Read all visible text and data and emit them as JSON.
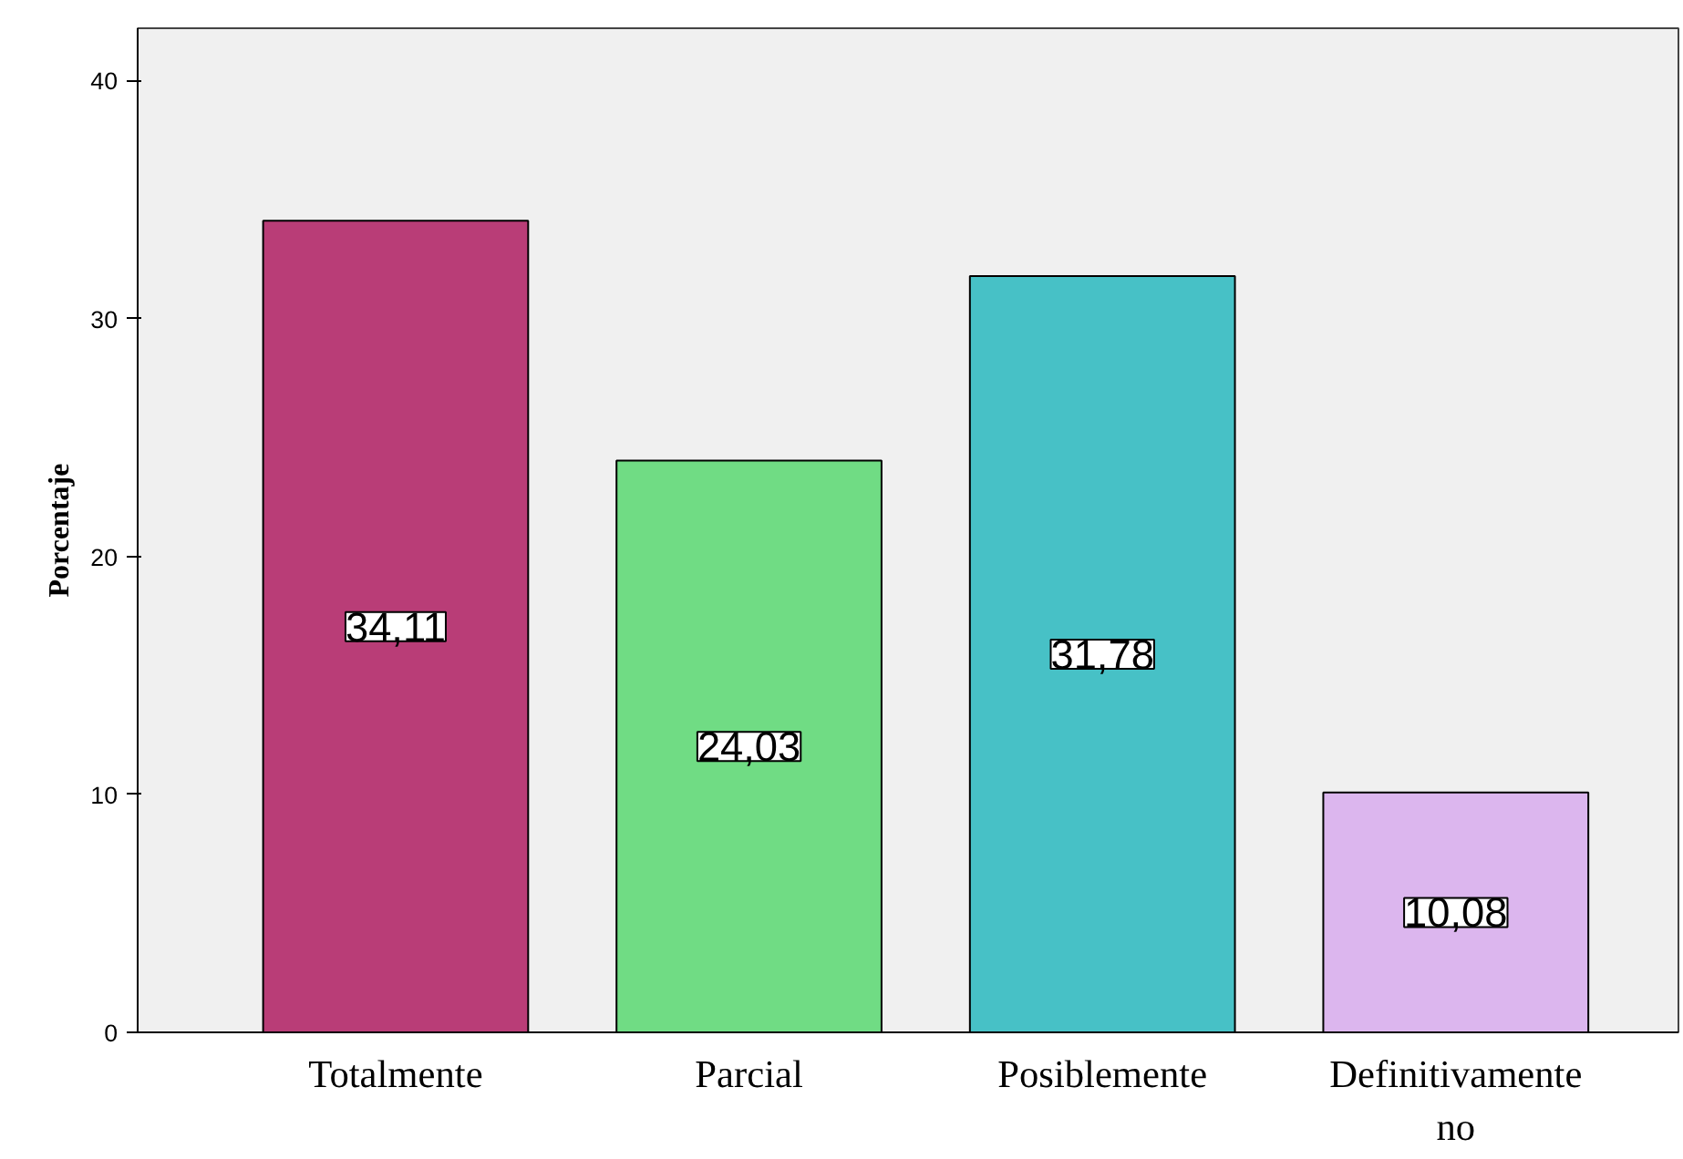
{
  "chart_data": {
    "type": "bar",
    "ylabel": "Porcentaje",
    "categories": [
      "Totalmente",
      "Parcial",
      "Posiblemente",
      "Definitivamente no"
    ],
    "values": [
      34.11,
      24.03,
      31.78,
      10.08
    ],
    "colors": [
      "#b93d77",
      "#70dc84",
      "#47c1c6",
      "#dcb6ee"
    ],
    "value_labels": [
      "34,11",
      "24,03",
      "31,78",
      "10,08"
    ],
    "ylim": [
      0,
      42.2
    ],
    "yticks": [
      0,
      10,
      20,
      30,
      40
    ],
    "grid": false
  }
}
